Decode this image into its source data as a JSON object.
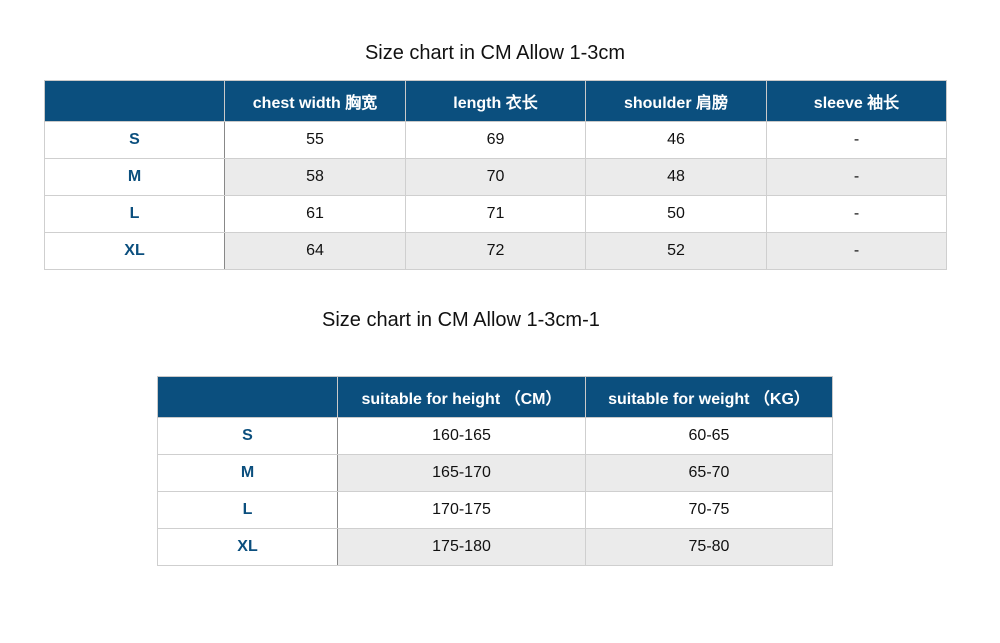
{
  "chart1": {
    "title": "Size chart in CM Allow 1-3cm",
    "headers": [
      "",
      "chest width 胸宽",
      "length 衣长",
      "shoulder 肩膀",
      "sleeve 袖长"
    ],
    "rows": [
      [
        "S",
        "55",
        "69",
        "46",
        "-"
      ],
      [
        "M",
        "58",
        "70",
        "48",
        "-"
      ],
      [
        "L",
        "61",
        "71",
        "50",
        "-"
      ],
      [
        "XL",
        "64",
        "72",
        "52",
        "-"
      ]
    ]
  },
  "chart2": {
    "title": "Size chart in CM Allow 1-3cm-1",
    "headers": [
      "",
      "suitable for height （CM）",
      "suitable for weight （KG）"
    ],
    "rows": [
      [
        "S",
        "160-165",
        "60-65"
      ],
      [
        "M",
        "165-170",
        "65-70"
      ],
      [
        "L",
        "170-175",
        "70-75"
      ],
      [
        "XL",
        "175-180",
        "75-80"
      ]
    ]
  },
  "colors": {
    "header_bg": "#0b4f7e",
    "label_text": "#0b4f7e",
    "alt_row": "#ebebeb"
  }
}
